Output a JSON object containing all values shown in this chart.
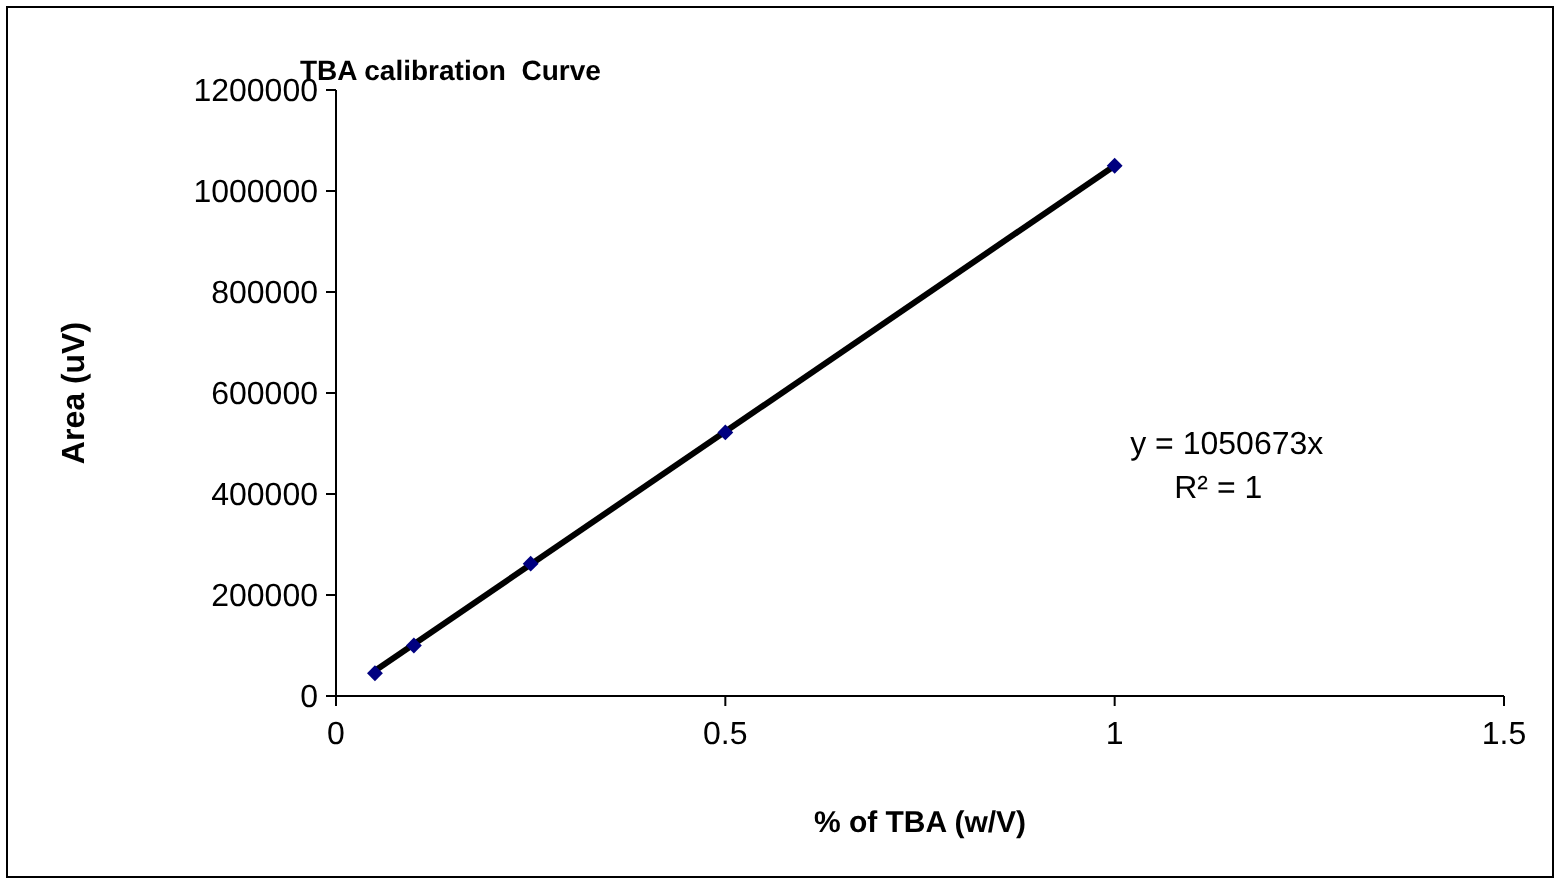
{
  "chart_data": {
    "type": "scatter",
    "title": "TBA calibration  Curve",
    "xlabel": "% of TBA (w/V)",
    "ylabel": "Area (uV)",
    "xlim": [
      0,
      1.5
    ],
    "xticks": [
      0,
      0.5,
      1,
      1.5
    ],
    "ylim": [
      0,
      1200000
    ],
    "yticks": [
      0,
      200000,
      400000,
      600000,
      800000,
      1000000,
      1200000
    ],
    "grid": false,
    "marker": "diamond",
    "series": [
      {
        "type": "line",
        "color": "#000000",
        "x": [
          0.05,
          1
        ],
        "values": [
          50000,
          1050000
        ],
        "marker": "none",
        "line_style": "solid"
      },
      {
        "color": "#000080",
        "x": [
          0.05,
          0.1,
          0.25,
          0.5,
          1
        ],
        "values": [
          45000,
          100000,
          262000,
          522000,
          1050000
        ]
      }
    ],
    "annotations": [
      "y = 1050673x",
      "R² = 1"
    ]
  }
}
